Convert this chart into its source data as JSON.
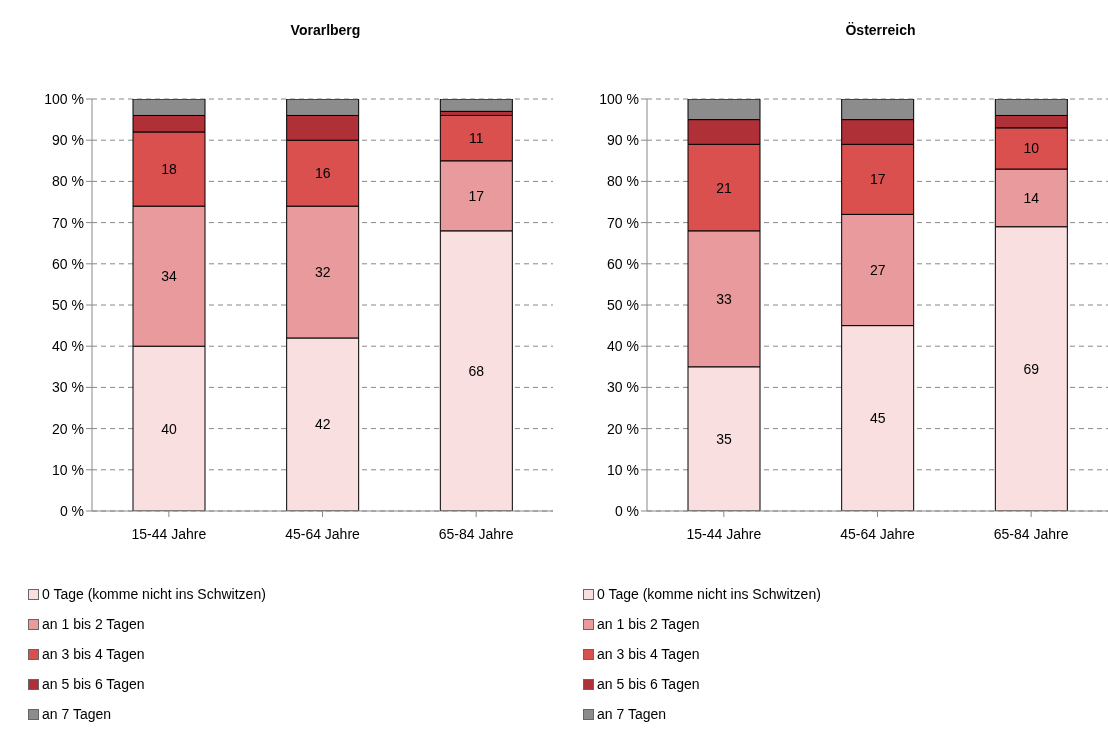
{
  "chart_data": [
    {
      "type": "bar",
      "title": "Vorarlberg",
      "categories": [
        "15-44 Jahre",
        "45-64 Jahre",
        "65-84 Jahre"
      ],
      "stacked": true,
      "ylim": [
        0,
        100
      ],
      "yticks": [
        {
          "value": 0,
          "label": "0 %"
        },
        {
          "value": 10,
          "label": "10 %"
        },
        {
          "value": 20,
          "label": "20 %"
        },
        {
          "value": 30,
          "label": "30 %"
        },
        {
          "value": 40,
          "label": "40 %"
        },
        {
          "value": 50,
          "label": "50 %"
        },
        {
          "value": 60,
          "label": "60 %"
        },
        {
          "value": 70,
          "label": "70 %"
        },
        {
          "value": 80,
          "label": "80 %"
        },
        {
          "value": 90,
          "label": "90 %"
        },
        {
          "value": 100,
          "label": "100 %"
        }
      ],
      "grid": "y",
      "legend": "bottom left",
      "series": [
        {
          "name": "0 Tage (komme nicht ins Schwitzen)",
          "color": "#f9dfe0",
          "values": [
            40,
            42,
            68
          ],
          "value_labels": [
            "40",
            "42",
            "68"
          ]
        },
        {
          "name": "an 1 bis 2 Tagen",
          "color": "#e89a9c",
          "values": [
            34,
            32,
            17
          ],
          "value_labels": [
            "34",
            "32",
            "17"
          ]
        },
        {
          "name": "an 3 bis 4 Tagen",
          "color": "#d9504f",
          "values": [
            18,
            16,
            11
          ],
          "value_labels": [
            "18",
            "16",
            "11"
          ]
        },
        {
          "name": "an 5 bis 6 Tagen",
          "color": "#b03038",
          "values": [
            4,
            6,
            1
          ],
          "value_labels": [
            null,
            null,
            null
          ]
        },
        {
          "name": "an 7 Tagen",
          "color": "#8c8c8c",
          "values": [
            4,
            4,
            3
          ],
          "value_labels": [
            null,
            null,
            null
          ]
        }
      ]
    },
    {
      "type": "bar",
      "title": "Österreich",
      "categories": [
        "15-44 Jahre",
        "45-64 Jahre",
        "65-84 Jahre"
      ],
      "stacked": true,
      "ylim": [
        0,
        100
      ],
      "yticks": [
        {
          "value": 0,
          "label": "0 %"
        },
        {
          "value": 10,
          "label": "10 %"
        },
        {
          "value": 20,
          "label": "20 %"
        },
        {
          "value": 30,
          "label": "30 %"
        },
        {
          "value": 40,
          "label": "40 %"
        },
        {
          "value": 50,
          "label": "50 %"
        },
        {
          "value": 60,
          "label": "60 %"
        },
        {
          "value": 70,
          "label": "70 %"
        },
        {
          "value": 80,
          "label": "80 %"
        },
        {
          "value": 90,
          "label": "90 %"
        },
        {
          "value": 100,
          "label": "100 %"
        }
      ],
      "grid": "y",
      "legend": "bottom left",
      "series": [
        {
          "name": "0 Tage (komme nicht ins Schwitzen)",
          "color": "#f9dfe0",
          "values": [
            35,
            45,
            69
          ],
          "value_labels": [
            "35",
            "45",
            "69"
          ]
        },
        {
          "name": "an 1 bis 2 Tagen",
          "color": "#e89a9c",
          "values": [
            33,
            27,
            14
          ],
          "value_labels": [
            "33",
            "27",
            "14"
          ]
        },
        {
          "name": "an 3 bis 4 Tagen",
          "color": "#d9504f",
          "values": [
            21,
            17,
            10
          ],
          "value_labels": [
            "21",
            "17",
            "10"
          ]
        },
        {
          "name": "an 5 bis 6 Tagen",
          "color": "#b03038",
          "values": [
            6,
            6,
            3
          ],
          "value_labels": [
            null,
            null,
            null
          ]
        },
        {
          "name": "an 7 Tagen",
          "color": "#8c8c8c",
          "values": [
            5,
            5,
            4
          ],
          "value_labels": [
            null,
            null,
            null
          ]
        }
      ]
    }
  ]
}
